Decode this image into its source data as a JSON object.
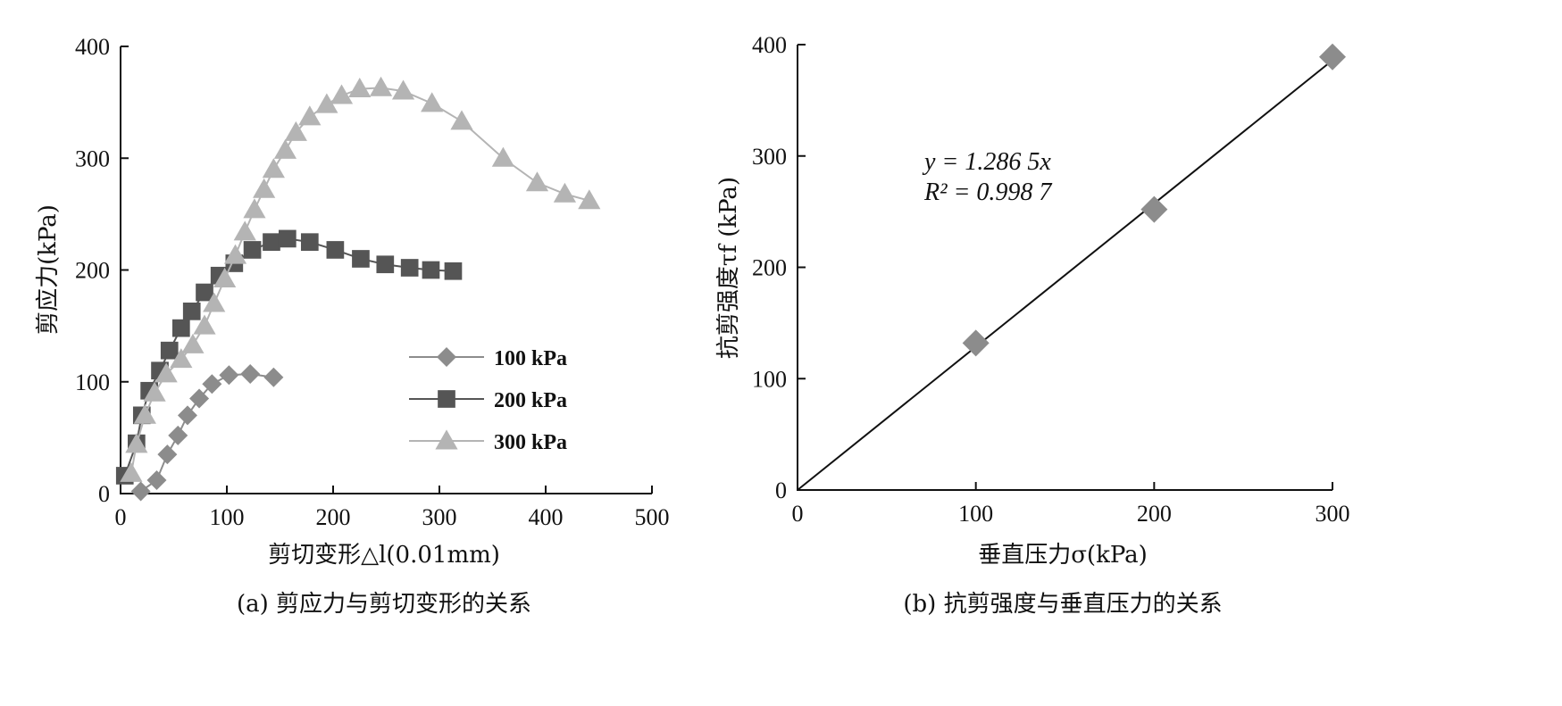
{
  "chart_data": [
    {
      "type": "line",
      "caption": "(a) 剪应力与剪切变形的关系",
      "xlabel": "剪切变形△l(0.01mm)",
      "ylabel": "剪应力(kPa)",
      "xlim": [
        0,
        500
      ],
      "ylim": [
        0,
        400
      ],
      "xticks": [
        "0",
        "100",
        "200",
        "300",
        "400",
        "500"
      ],
      "yticks": [
        "0",
        "100",
        "200",
        "300",
        "400"
      ],
      "legend_position": "center-right",
      "series": [
        {
          "name": "100 kPa",
          "marker": "diamond",
          "color": "#8c8c8c",
          "x": [
            19,
            34,
            44,
            54,
            63,
            74,
            86,
            102,
            122,
            144
          ],
          "y": [
            2,
            12,
            35,
            52,
            70,
            85,
            98,
            106,
            107,
            104
          ]
        },
        {
          "name": "200 kPa",
          "marker": "square",
          "color": "#555555",
          "x": [
            4,
            15,
            20,
            27,
            37,
            46,
            57,
            67,
            79,
            93,
            107,
            124,
            142,
            157,
            178,
            202,
            226,
            249,
            272,
            292,
            313
          ],
          "y": [
            16,
            45,
            70,
            92,
            110,
            128,
            148,
            163,
            180,
            195,
            206,
            218,
            225,
            228,
            225,
            218,
            210,
            205,
            202,
            200,
            199
          ]
        },
        {
          "name": "300 kPa",
          "marker": "triangle",
          "color": "#b4b4b4",
          "x": [
            10,
            15,
            23,
            32,
            43,
            57,
            68,
            79,
            88,
            98,
            108,
            117,
            126,
            135,
            144,
            155,
            165,
            178,
            194,
            208,
            225,
            245,
            266,
            293,
            321,
            360,
            392,
            418,
            441
          ],
          "y": [
            18,
            44,
            70,
            90,
            107,
            120,
            133,
            150,
            170,
            192,
            213,
            234,
            254,
            272,
            290,
            307,
            323,
            337,
            348,
            356,
            362,
            363,
            360,
            349,
            333,
            300,
            278,
            268,
            262
          ]
        }
      ]
    },
    {
      "type": "scatter",
      "caption": "(b) 抗剪强度与垂直压力的关系",
      "xlabel": "垂直压力σ(kPa)",
      "ylabel": "抗剪强度τf (kPa)",
      "xlim": [
        0,
        300
      ],
      "ylim": [
        0,
        400
      ],
      "xticks": [
        "0",
        "100",
        "200",
        "300"
      ],
      "yticks": [
        "0",
        "100",
        "200",
        "300",
        "400"
      ],
      "series": [
        {
          "name": "",
          "marker": "diamond",
          "color": "#8c8c8c",
          "x": [
            100,
            200,
            300
          ],
          "y": [
            132,
            252,
            389
          ]
        }
      ],
      "fit": {
        "slope": 1.2865,
        "intercept": 0,
        "color": "#111111",
        "equation": "y = 1.286 5x",
        "r2": "R² = 0.998 7"
      }
    }
  ]
}
